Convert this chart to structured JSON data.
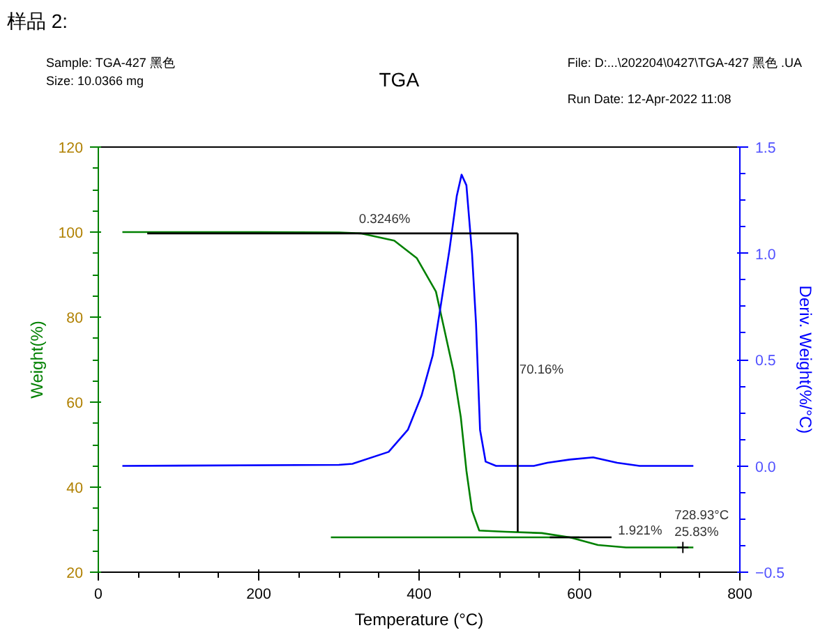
{
  "chart_data": {
    "type": "line",
    "subtitle": "样品 2:",
    "title": "TGA",
    "xlabel": "Temperature (°C)",
    "ylabel": "Weight(%)",
    "y2label": "Deriv. Weight(%/°C)",
    "xlim": [
      0,
      800
    ],
    "ylim": [
      20,
      120
    ],
    "y2lim": [
      -0.5,
      1.5
    ],
    "xticks": [
      0,
      200,
      400,
      600,
      800
    ],
    "yticks": [
      20,
      40,
      60,
      80,
      100,
      120
    ],
    "y2ticks": [
      -0.5,
      {
        "value": 0,
        "label": "0.0"
      },
      0.5,
      {
        "value": 1,
        "label": "1.0"
      },
      1.5
    ],
    "grid": false,
    "annotations": [
      "Sample: TGA-427 黑色",
      "Size:  10.0366 mg",
      "File: D:...\\202204\\0427\\TGA-427 黑色 .UA",
      "Run Date: 12-Apr-2022 11:08",
      {
        "text": "0.3246%",
        "x": 325,
        "y": 101.5
      },
      {
        "text": "70.16%",
        "x": 525,
        "y": 66
      },
      {
        "text": "1.921%",
        "x": 648,
        "y": 28.2
      },
      {
        "text": "728.93°C\n25.83%",
        "x": 728.93,
        "y": 25.83
      }
    ],
    "series": [
      {
        "color": "#008000",
        "x": [
          30,
          200,
          300,
          327,
          369,
          397,
          421,
          431,
          443,
          452,
          459,
          466,
          475,
          508,
          553,
          588,
          623,
          658,
          728.93,
          742
        ],
        "values": [
          100,
          100,
          99.9,
          99.7,
          98.0,
          93.9,
          86.0,
          77.5,
          67.2,
          56.5,
          43.9,
          34.5,
          29.8,
          29.5,
          29.2,
          28.2,
          26.4,
          25.83,
          25.83,
          25.83
        ]
      },
      {
        "color": "#008000",
        "x": [
          290,
          600
        ],
        "values": [
          28.2,
          28.2
        ]
      },
      {
        "color": "#0000ff",
        "axis": "y2",
        "x": [
          30,
          300,
          317,
          362,
          386,
          403,
          417,
          426,
          438,
          447,
          453,
          459,
          466,
          471,
          476,
          483,
          496,
          543,
          560,
          588,
          617,
          647,
          675,
          742
        ],
        "values": [
          0,
          0.005,
          0.01,
          0.066,
          0.17,
          0.33,
          0.52,
          0.73,
          1.02,
          1.27,
          1.37,
          1.32,
          1.0,
          0.67,
          0.17,
          0.02,
          0,
          0,
          0.015,
          0.03,
          0.04,
          0.015,
          0,
          0
        ]
      },
      {
        "color": "#000000",
        "x": [
          61,
          523
        ],
        "values": [
          99.7,
          99.7
        ]
      },
      {
        "color": "#000000",
        "x": [
          523,
          523
        ],
        "values": [
          99.7,
          29.5
        ]
      },
      {
        "color": "#000000",
        "x": [
          563,
          640
        ],
        "values": [
          28.2,
          28.2
        ]
      }
    ]
  }
}
